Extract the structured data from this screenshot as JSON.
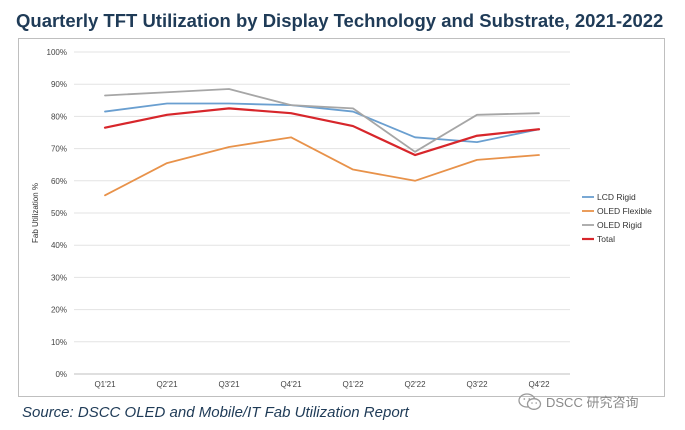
{
  "title": "Quarterly TFT Utilization by Display Technology and Substrate, 2021-2022",
  "source": "Source: DSCC OLED and Mobile/IT Fab Utilization Report",
  "watermark": "DSCC 研究咨询",
  "chart_data": {
    "type": "line",
    "title": "Quarterly TFT Utilization by Display Technology and Substrate, 2021-2022",
    "xlabel": "",
    "ylabel": "Fab Utilization %",
    "categories": [
      "Q1'21",
      "Q2'21",
      "Q3'21",
      "Q4'21",
      "Q1'22",
      "Q2'22",
      "Q3'22",
      "Q4'22"
    ],
    "ylim": [
      0,
      100
    ],
    "yticks": [
      "0%",
      "10%",
      "20%",
      "30%",
      "40%",
      "50%",
      "60%",
      "70%",
      "80%",
      "90%",
      "100%"
    ],
    "legend_position": "right",
    "grid": true,
    "series": [
      {
        "name": "LCD Rigid",
        "color": "#6a9fd0",
        "values": [
          81.5,
          84,
          84,
          83.5,
          81.5,
          73.5,
          72,
          76
        ]
      },
      {
        "name": "OLED Flexible",
        "color": "#e8924a",
        "values": [
          55.5,
          65.5,
          70.5,
          73.5,
          63.5,
          60,
          66.5,
          68
        ]
      },
      {
        "name": "OLED Rigid",
        "color": "#a6a6a6",
        "values": [
          86.5,
          87.5,
          88.5,
          83.5,
          82.5,
          69,
          80.5,
          81
        ]
      },
      {
        "name": "Total",
        "color": "#d7262b",
        "values": [
          76.5,
          80.5,
          82.5,
          81,
          77,
          68,
          74,
          76
        ]
      }
    ]
  }
}
